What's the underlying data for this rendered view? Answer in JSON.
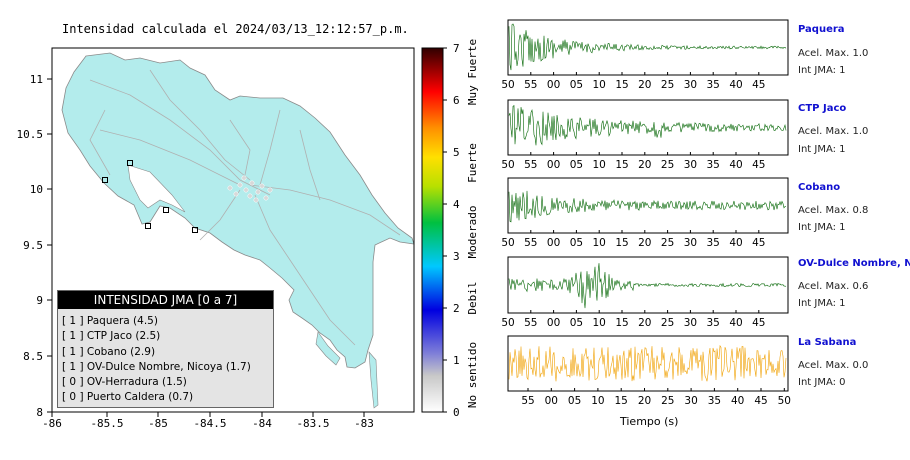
{
  "map": {
    "title": "Intensidad calculada el 2024/03/13_12:12:57_p.m.",
    "lon_ticks": [
      "-86",
      "-85.5",
      "-85",
      "-84.5",
      "-84",
      "-83.5",
      "-83"
    ],
    "lat_ticks": [
      "11",
      "10.5",
      "10",
      "9.5",
      "9",
      "8.5",
      "8"
    ],
    "land_color": "#b3ecec"
  },
  "colorbar": {
    "ticks": [
      "7",
      "6",
      "5",
      "4",
      "3",
      "2",
      "1",
      "0"
    ],
    "labels": [
      "Muy Fuerte",
      "Fuerte",
      "Moderado",
      "Debil",
      "No sentido"
    ]
  },
  "legend": {
    "header": "INTENSIDAD JMA [0 a 7]",
    "items": [
      "[ 1 ]  Paquera (4.5)",
      "[ 1 ]  CTP Jaco (2.5)",
      "[ 1 ]  Cobano (2.9)",
      "[ 1 ]  OV-Dulce Nombre, Nicoya (1.7)",
      "[ 0 ]  OV-Herradura (1.5)",
      "[ 0 ]  Puerto Caldera (0.7)"
    ]
  },
  "stations": [
    {
      "name": "Paquera",
      "acc": "Acel. Max. 1.0",
      "int": "Int JMA: 1"
    },
    {
      "name": "CTP Jaco",
      "acc": "Acel. Max. 1.0",
      "int": "Int JMA: 1"
    },
    {
      "name": "Cobano",
      "acc": "Acel. Max. 0.8",
      "int": "Int JMA: 1"
    },
    {
      "name": "OV-Dulce Nombre, Nicoya",
      "acc": "Acel. Max. 0.6",
      "int": "Int JMA: 1"
    },
    {
      "name": "La Sabana",
      "acc": "Acel. Max. 0.0",
      "int": "Int JMA: 0"
    }
  ],
  "xaxis_label": "Tiempo (s)",
  "chart_data": {
    "type": "line",
    "x_tick_labels": [
      "50",
      "55",
      "00",
      "05",
      "10",
      "15",
      "20",
      "25",
      "30",
      "35",
      "40",
      "45"
    ],
    "last_panel_x_tick_labels": [
      "55",
      "00",
      "05",
      "10",
      "15",
      "20",
      "25",
      "30",
      "35",
      "40",
      "45",
      "50"
    ],
    "series": [
      {
        "name": "Paquera",
        "color": "#006400"
      },
      {
        "name": "CTP Jaco",
        "color": "#006400"
      },
      {
        "name": "Cobano",
        "color": "#006400"
      },
      {
        "name": "OV-Dulce Nombre, Nicoya",
        "color": "#006400"
      },
      {
        "name": "La Sabana",
        "color": "#f0a000"
      }
    ]
  }
}
